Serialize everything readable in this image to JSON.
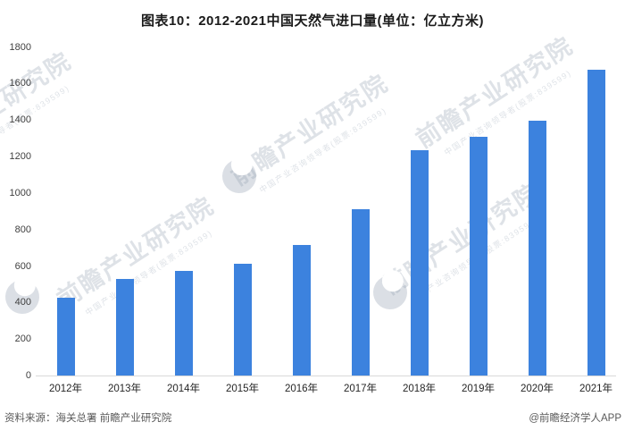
{
  "title": "图表10：2012-2021中国天然气进口量(单位：亿立方米)",
  "chart_data": {
    "type": "bar",
    "title": "图表10：2012-2021中国天然气进口量(单位：亿立方米)",
    "unit": "亿立方米",
    "categories": [
      "2012年",
      "2013年",
      "2014年",
      "2015年",
      "2016年",
      "2017年",
      "2018年",
      "2019年",
      "2020年",
      "2021年"
    ],
    "values": [
      425,
      527,
      573,
      614,
      716,
      913,
      1233,
      1310,
      1396,
      1673
    ],
    "xlabel": "",
    "ylabel": "",
    "ylim": [
      0,
      1800
    ],
    "yticks": [
      0,
      200,
      400,
      600,
      800,
      1000,
      1200,
      1400,
      1600,
      1800
    ],
    "grid": false,
    "legend": false,
    "bar_color": "#3c82de"
  },
  "footer": {
    "source": "资料来源：海关总署 前瞻产业研究院",
    "credit": "@前瞻经济学人APP"
  },
  "watermark": {
    "text": "前瞻产业研究院",
    "subtext": "中国产业咨询领导者(股票:839599)"
  }
}
